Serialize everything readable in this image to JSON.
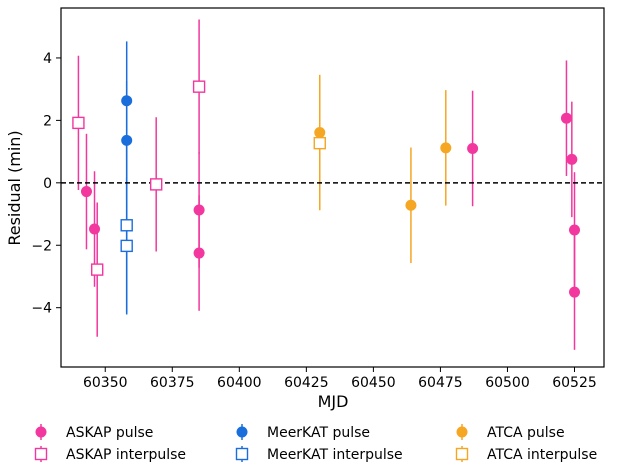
{
  "chart_data": {
    "type": "scatter",
    "xlabel": "MJD",
    "ylabel": "Residual (min)",
    "xlim": [
      60333.5,
      60536
    ],
    "ylim": [
      -5.9,
      5.6
    ],
    "xticks": [
      60350,
      60375,
      60400,
      60425,
      60450,
      60475,
      60500,
      60525
    ],
    "yticks": [
      -4,
      -2,
      0,
      2,
      4
    ],
    "xtick_labels": [
      "60350",
      "60375",
      "60400",
      "60425",
      "60450",
      "60475",
      "60500",
      "60525"
    ],
    "ytick_labels": [
      "−4",
      "−2",
      "0",
      "2",
      "4"
    ],
    "reference_line": {
      "y": 0,
      "style": "dashed"
    },
    "legend_placement": "bottom, outside plot",
    "series": [
      {
        "name": "ASKAP pulse",
        "marker": "filled-circle",
        "color": "#f2379e",
        "points": [
          {
            "x": 60343,
            "y": -0.28,
            "err": 1.85
          },
          {
            "x": 60346,
            "y": -1.48,
            "err": 1.85
          },
          {
            "x": 60385,
            "y": -0.87,
            "err": 1.85
          },
          {
            "x": 60385,
            "y": -2.25,
            "err": 1.85
          },
          {
            "x": 60487,
            "y": 1.1,
            "err": 1.85
          },
          {
            "x": 60522,
            "y": 2.07,
            "err": 1.85
          },
          {
            "x": 60524,
            "y": 0.75,
            "err": 1.85
          },
          {
            "x": 60525,
            "y": -1.51,
            "err": 1.85
          },
          {
            "x": 60525,
            "y": -3.5,
            "err": 1.85
          }
        ]
      },
      {
        "name": "ASKAP interpulse",
        "marker": "open-square",
        "color": "#f2379e",
        "points": [
          {
            "x": 60340,
            "y": 1.92,
            "err": 2.15
          },
          {
            "x": 60347,
            "y": -2.78,
            "err": 2.15
          },
          {
            "x": 60369,
            "y": -0.05,
            "err": 2.15
          },
          {
            "x": 60385,
            "y": 3.08,
            "err": 2.15
          }
        ]
      },
      {
        "name": "MeerKAT pulse",
        "marker": "filled-circle",
        "color": "#1a6edb",
        "points": [
          {
            "x": 60358,
            "y": 2.63,
            "err": 1.9
          },
          {
            "x": 60358,
            "y": 1.36,
            "err": 1.9
          }
        ]
      },
      {
        "name": "MeerKAT interpulse",
        "marker": "open-square",
        "color": "#1a6edb",
        "points": [
          {
            "x": 60358,
            "y": -1.36,
            "err": 2.8
          },
          {
            "x": 60358,
            "y": -2.02,
            "err": 2.2
          }
        ]
      },
      {
        "name": "ATCA pulse",
        "marker": "filled-circle",
        "color": "#f5a623",
        "points": [
          {
            "x": 60430,
            "y": 1.61,
            "err": 1.85
          },
          {
            "x": 60464,
            "y": -0.72,
            "err": 1.85
          },
          {
            "x": 60477,
            "y": 1.12,
            "err": 1.85
          }
        ]
      },
      {
        "name": "ATCA interpulse",
        "marker": "open-square",
        "color": "#f5a623",
        "points": [
          {
            "x": 60430,
            "y": 1.27,
            "err": 2.15
          }
        ]
      }
    ]
  }
}
